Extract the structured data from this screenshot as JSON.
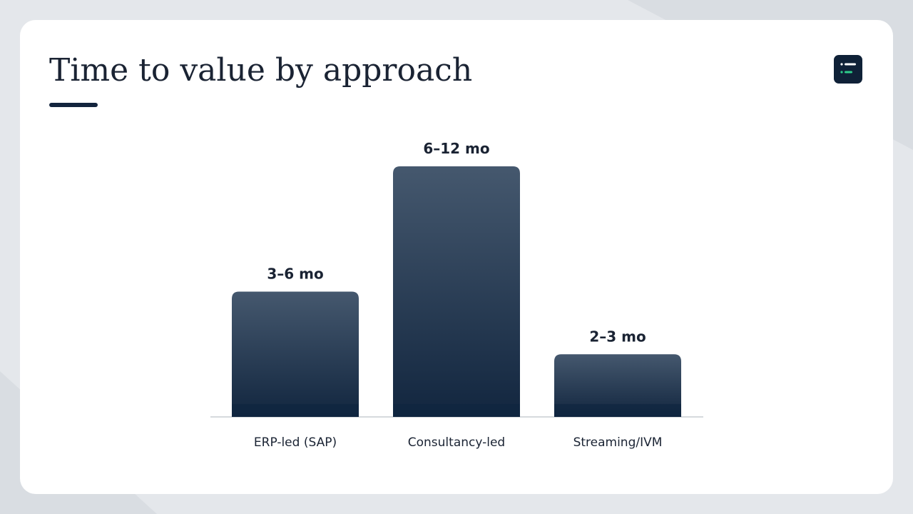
{
  "chart_data": {
    "type": "bar",
    "title": "Time to value by approach",
    "categories": [
      "ERP-led (SAP)",
      "Consultancy-led",
      "Streaming/IVM"
    ],
    "values": [
      6,
      12,
      3
    ],
    "value_labels": [
      "3–6 mo",
      "6–12 mo",
      "2–3 mo"
    ],
    "color": "#2b3d55",
    "ylim": [
      0,
      12
    ]
  }
}
